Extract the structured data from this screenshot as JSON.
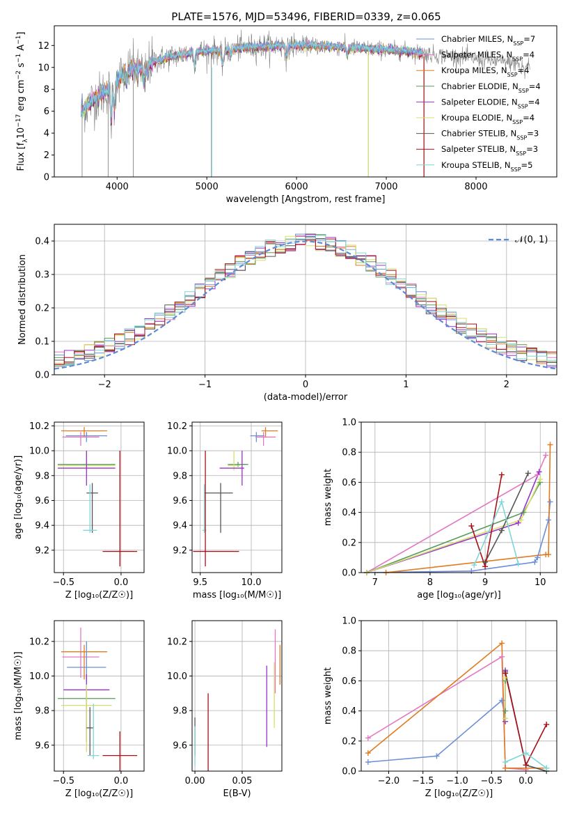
{
  "title": "PLATE=1576, MJD=53496, FIBERID=0339, z=0.065",
  "colors": {
    "Chabrier MILES": "#6a8ed8",
    "Salpeter MILES": "#e377c2",
    "Kroupa MILES": "#e07b1e",
    "Chabrier ELODIE": "#5a9a5a",
    "Salpeter ELODIE": "#9932cc",
    "Kroupa ELODIE": "#d4e06a",
    "Chabrier STELIB": "#555555",
    "Salpeter STELIB": "#a50f15",
    "Kroupa STELIB": "#7fd6d6",
    "data": "#808080"
  },
  "chart_data": [
    {
      "id": "spectrum",
      "type": "line",
      "xlabel": "wavelength [Angstrom, rest frame]",
      "ylabel_parts": [
        "Flux [f",
        "λ",
        "10",
        "−17",
        " erg cm",
        "−2",
        " s",
        "−1",
        " A",
        "−1",
        "]"
      ],
      "xlim": [
        3300,
        8900
      ],
      "ylim": [
        0,
        13.8
      ],
      "xticks": [
        4000,
        5000,
        6000,
        7000,
        8000
      ],
      "yticks": [
        0,
        2,
        4,
        6,
        8,
        10,
        12
      ],
      "grid": false,
      "legend_position": "right",
      "legend": [
        {
          "model": "Chabrier MILES",
          "n": "7"
        },
        {
          "model": "Salpeter MILES",
          "n": "4"
        },
        {
          "model": "Kroupa MILES",
          "n": "4"
        },
        {
          "model": "Chabrier ELODIE",
          "n": "4"
        },
        {
          "model": "Salpeter ELODIE",
          "n": "4"
        },
        {
          "model": "Kroupa ELODIE",
          "n": "4"
        },
        {
          "model": "Chabrier STELIB",
          "n": "3"
        },
        {
          "model": "Salpeter STELIB",
          "n": "3"
        },
        {
          "model": "Kroupa STELIB",
          "n": "5"
        }
      ],
      "continuum": {
        "x": [
          3600,
          3700,
          3800,
          3900,
          4000,
          4100,
          4200,
          4300,
          4400,
          4500,
          4600,
          4700,
          4800,
          4900,
          5000,
          5200,
          5400,
          5600,
          5800,
          6000,
          6200,
          6400,
          6600,
          6800,
          7000,
          7200,
          7400,
          7600,
          7800,
          8000,
          8200,
          8400,
          8600
        ],
        "y": [
          6.0,
          6.8,
          7.4,
          8.0,
          8.9,
          9.6,
          10.0,
          10.3,
          10.5,
          10.8,
          11.0,
          11.1,
          11.3,
          11.4,
          11.5,
          11.6,
          11.8,
          11.9,
          12.0,
          12.0,
          12.0,
          11.9,
          11.8,
          11.7,
          11.6,
          11.5,
          11.3,
          11.1,
          11.0,
          10.8,
          10.6,
          10.4,
          10.2
        ]
      },
      "x_range_data": [
        3600,
        8600
      ],
      "x_range_models": [
        3600,
        7400
      ]
    },
    {
      "id": "residuals",
      "type": "histogram",
      "xlabel": "(data-model)/error",
      "ylabel": "Normed distribution",
      "xlim": [
        -2.5,
        2.5
      ],
      "ylim": [
        0,
        0.45
      ],
      "xticks": [
        -2,
        -1,
        0,
        1,
        2
      ],
      "yticks": [
        0.0,
        0.1,
        0.2,
        0.3,
        0.4
      ],
      "grid": true,
      "legend_position": "top-right",
      "legend": [
        "𝒩(0, 1)"
      ],
      "bins": 50,
      "reference": "gaussian mu=0 sigma=1"
    },
    {
      "id": "age_vs_Z",
      "type": "errorbar",
      "xlabel": "Z [log₁₀(Z/Z☉)]",
      "ylabel": "age  [log₁₀(age/yr)]",
      "xlim": [
        -0.58,
        0.2
      ],
      "ylim": [
        9.02,
        10.23
      ],
      "xticks": [
        -0.5,
        0.0
      ],
      "yticks": [
        9.2,
        9.4,
        9.6,
        9.8,
        10.0,
        10.2
      ],
      "grid": true,
      "points": [
        {
          "model": "Kroupa MILES",
          "x": -0.32,
          "y": 10.16,
          "xerr": [
            0.2,
            0.2
          ],
          "yerr": [
            0.05,
            0.03
          ]
        },
        {
          "model": "Chabrier MILES",
          "x": -0.3,
          "y": 10.12,
          "xerr": [
            0.18,
            0.18
          ],
          "yerr": [
            0.05,
            0.03
          ]
        },
        {
          "model": "Salpeter MILES",
          "x": -0.35,
          "y": 10.11,
          "xerr": [
            0.16,
            0.16
          ],
          "yerr": [
            0.07,
            0.04
          ]
        },
        {
          "model": "Chabrier ELODIE",
          "x": -0.3,
          "y": 9.89,
          "xerr": [
            0.25,
            0.25
          ],
          "yerr": [
            0.02,
            0.02
          ]
        },
        {
          "model": "Kroupa ELODIE",
          "x": -0.3,
          "y": 9.88,
          "xerr": [
            0.25,
            0.25
          ],
          "yerr": [
            0.04,
            0.12
          ]
        },
        {
          "model": "Salpeter ELODIE",
          "x": -0.3,
          "y": 9.86,
          "xerr": [
            0.25,
            0.25
          ],
          "yerr": [
            0.14,
            0.14
          ]
        },
        {
          "model": "Chabrier STELIB",
          "x": -0.25,
          "y": 9.66,
          "xerr": [
            0.05,
            0.05
          ],
          "yerr": [
            0.32,
            0.08
          ]
        },
        {
          "model": "Kroupa STELIB",
          "x": -0.27,
          "y": 9.36,
          "xerr": [
            0.06,
            0.06
          ],
          "yerr": [
            0.02,
            0.37
          ]
        },
        {
          "model": "Salpeter STELIB",
          "x": -0.01,
          "y": 9.19,
          "xerr": [
            0.15,
            0.15
          ],
          "yerr": [
            0.12,
            0.81
          ]
        }
      ]
    },
    {
      "id": "age_vs_mass",
      "type": "errorbar",
      "xlabel": "mass [log₁₀(M/M☉)]",
      "ylabel": "",
      "xlim": [
        9.42,
        10.3
      ],
      "ylim": [
        9.02,
        10.23
      ],
      "xticks": [
        9.5,
        10.0
      ],
      "yticks": [
        9.2,
        9.4,
        9.6,
        9.8,
        10.0,
        10.2
      ],
      "grid": true,
      "points": [
        {
          "model": "Kroupa MILES",
          "x": 10.14,
          "y": 10.16,
          "xerr": [
            0.04,
            0.12
          ],
          "yerr": [
            0.05,
            0.03
          ]
        },
        {
          "model": "Chabrier MILES",
          "x": 10.05,
          "y": 10.12,
          "xerr": [
            0.06,
            0.08
          ],
          "yerr": [
            0.05,
            0.03
          ]
        },
        {
          "model": "Salpeter MILES",
          "x": 10.12,
          "y": 10.11,
          "xerr": [
            0.08,
            0.12
          ],
          "yerr": [
            0.07,
            0.04
          ]
        },
        {
          "model": "Chabrier ELODIE",
          "x": 9.87,
          "y": 9.89,
          "xerr": [
            0.1,
            0.1
          ],
          "yerr": [
            0.02,
            0.02
          ]
        },
        {
          "model": "Kroupa ELODIE",
          "x": 9.83,
          "y": 9.88,
          "xerr": [
            0.06,
            0.06
          ],
          "yerr": [
            0.04,
            0.12
          ]
        },
        {
          "model": "Salpeter ELODIE",
          "x": 9.91,
          "y": 9.86,
          "xerr": [
            0.22,
            0.02
          ],
          "yerr": [
            0.14,
            0.14
          ]
        },
        {
          "model": "Chabrier STELIB",
          "x": 9.7,
          "y": 9.66,
          "xerr": [
            0.16,
            0.12
          ],
          "yerr": [
            0.32,
            0.08
          ]
        },
        {
          "model": "Kroupa STELIB",
          "x": 9.54,
          "y": 9.36,
          "xerr": [
            0.02,
            0.02
          ],
          "yerr": [
            0.02,
            0.37
          ]
        },
        {
          "model": "Salpeter STELIB",
          "x": 9.55,
          "y": 9.19,
          "xerr": [
            0.12,
            0.33
          ],
          "yerr": [
            0.12,
            0.81
          ]
        }
      ]
    },
    {
      "id": "mass_weight_vs_age",
      "type": "line",
      "xlabel": "age  [log₁₀(age/yr)]",
      "ylabel": "mass weight",
      "xlim": [
        6.75,
        10.3
      ],
      "ylim": [
        0,
        1
      ],
      "xticks": [
        7,
        8,
        9,
        10
      ],
      "yticks": [
        0.0,
        0.2,
        0.4,
        0.6,
        0.8,
        1.0
      ],
      "grid": true,
      "series": [
        {
          "model": "Chabrier MILES",
          "x": [
            6.85,
            8.75,
            9.9,
            9.95,
            10.15,
            10.18
          ],
          "y": [
            0.0,
            0.01,
            0.07,
            0.1,
            0.35,
            0.47
          ]
        },
        {
          "model": "Salpeter MILES",
          "x": [
            6.85,
            9.95,
            10.1
          ],
          "y": [
            0.0,
            0.65,
            0.78
          ]
        },
        {
          "model": "Kroupa MILES",
          "x": [
            7.2,
            10.1,
            10.15,
            10.18
          ],
          "y": [
            0.0,
            0.12,
            0.12,
            0.85
          ]
        },
        {
          "model": "Chabrier ELODIE",
          "x": [
            6.85,
            9.7,
            10.0
          ],
          "y": [
            0.0,
            0.4,
            0.6
          ]
        },
        {
          "model": "Salpeter ELODIE",
          "x": [
            6.85,
            9.6,
            9.98
          ],
          "y": [
            0.0,
            0.33,
            0.67
          ]
        },
        {
          "model": "Kroupa ELODIE",
          "x": [
            6.85,
            9.65,
            10.0
          ],
          "y": [
            0.0,
            0.35,
            0.62
          ]
        },
        {
          "model": "Chabrier STELIB",
          "x": [
            9.0,
            9.3,
            9.78
          ],
          "y": [
            0.07,
            0.28,
            0.66
          ]
        },
        {
          "model": "Salpeter STELIB",
          "x": [
            8.75,
            9.0,
            9.3
          ],
          "y": [
            0.31,
            0.04,
            0.65
          ]
        },
        {
          "model": "Kroupa STELIB",
          "x": [
            8.8,
            9.3,
            9.6
          ],
          "y": [
            0.05,
            0.47,
            0.06
          ]
        }
      ]
    },
    {
      "id": "mass_vs_Z",
      "type": "errorbar",
      "xlabel": "Z [log₁₀(Z/Z☉)]",
      "ylabel": "mass [log₁₀(M/M☉)]",
      "xlim": [
        -0.58,
        0.2
      ],
      "ylim": [
        9.45,
        10.32
      ],
      "xticks": [
        -0.5,
        0.0
      ],
      "yticks": [
        9.6,
        9.8,
        10.0,
        10.2
      ],
      "grid": true,
      "points": [
        {
          "model": "Salpeter MILES",
          "x": -0.35,
          "y": 10.11,
          "xerr": [
            0.16,
            0.16
          ],
          "yerr": [
            0.12,
            0.17
          ]
        },
        {
          "model": "Kroupa MILES",
          "x": -0.32,
          "y": 10.14,
          "xerr": [
            0.2,
            0.2
          ],
          "yerr": [
            0.16,
            0.04
          ]
        },
        {
          "model": "Chabrier MILES",
          "x": -0.3,
          "y": 10.05,
          "xerr": [
            0.17,
            0.17
          ],
          "yerr": [
            0.08,
            0.15
          ]
        },
        {
          "model": "Salpeter ELODIE",
          "x": -0.3,
          "y": 9.92,
          "xerr": [
            0.2,
            0.2
          ],
          "yerr": [
            0.3,
            0.09
          ]
        },
        {
          "model": "Chabrier ELODIE",
          "x": -0.3,
          "y": 9.87,
          "xerr": [
            0.25,
            0.25
          ],
          "yerr": [
            0.02,
            0.02
          ]
        },
        {
          "model": "Kroupa ELODIE",
          "x": -0.3,
          "y": 9.83,
          "xerr": [
            0.22,
            0.22
          ],
          "yerr": [
            0.27,
            0.12
          ]
        },
        {
          "model": "Chabrier STELIB",
          "x": -0.27,
          "y": 9.7,
          "xerr": [
            0.03,
            0.03
          ],
          "yerr": [
            0.16,
            0.12
          ]
        },
        {
          "model": "Kroupa STELIB",
          "x": -0.24,
          "y": 9.54,
          "xerr": [
            0.05,
            0.05
          ],
          "yerr": [
            0.02,
            0.3
          ]
        },
        {
          "model": "Salpeter STELIB",
          "x": -0.01,
          "y": 9.54,
          "xerr": [
            0.15,
            0.15
          ],
          "yerr": [
            0.12,
            0.14
          ]
        }
      ]
    },
    {
      "id": "mass_vs_ebv",
      "type": "errorbar",
      "xlabel": "E(B-V)",
      "ylabel": "",
      "xlim": [
        -0.003,
        0.092
      ],
      "ylim": [
        9.45,
        10.32
      ],
      "xticks": [
        0.0,
        0.05
      ],
      "yticks": [
        9.6,
        9.8,
        10.0,
        10.2
      ],
      "grid": true,
      "points": [
        {
          "model": "Chabrier STELIB",
          "x": 0.0,
          "y": 9.7,
          "xerr": [
            0,
            0
          ],
          "yerr": [
            0.16,
            0.06
          ]
        },
        {
          "model": "Kroupa STELIB",
          "x": 0.0,
          "y": 9.6,
          "xerr": [
            0,
            0
          ],
          "yerr": [
            0.12,
            0.11
          ]
        },
        {
          "model": "Salpeter STELIB",
          "x": 0.014,
          "y": 9.7,
          "xerr": [
            0,
            0
          ],
          "yerr": [
            0.26,
            0.2
          ]
        },
        {
          "model": "Salpeter ELODIE",
          "x": 0.076,
          "y": 9.82,
          "xerr": [
            0,
            0
          ],
          "yerr": [
            0.23,
            0.24
          ]
        },
        {
          "model": "Kroupa ELODIE",
          "x": 0.084,
          "y": 9.9,
          "xerr": [
            0,
            0
          ],
          "yerr": [
            0.2,
            0.18
          ]
        },
        {
          "model": "Salpeter MILES",
          "x": 0.085,
          "y": 10.1,
          "xerr": [
            0,
            0
          ],
          "yerr": [
            0.2,
            0.17
          ]
        },
        {
          "model": "Kroupa MILES",
          "x": 0.09,
          "y": 10.07,
          "xerr": [
            0,
            0
          ],
          "yerr": [
            0.12,
            0.11
          ]
        }
      ]
    },
    {
      "id": "mass_weight_vs_Z",
      "type": "line",
      "xlabel": "Z [log₁₀(Z/Z☉)]",
      "ylabel": "mass weight",
      "xlim": [
        -2.4,
        0.45
      ],
      "ylim": [
        0,
        1
      ],
      "xticks": [
        -2.0,
        -1.5,
        -1.0,
        -0.5,
        0.0
      ],
      "yticks": [
        0.0,
        0.2,
        0.4,
        0.6,
        0.8,
        1.0
      ],
      "grid": true,
      "series": [
        {
          "model": "Chabrier MILES",
          "x": [
            -2.3,
            -1.3,
            -0.35,
            -0.3,
            -0.3
          ],
          "y": [
            0.06,
            0.1,
            0.47,
            0.35,
            0.33
          ]
        },
        {
          "model": "Salpeter MILES",
          "x": [
            -2.3,
            -0.35,
            -0.3,
            0.0
          ],
          "y": [
            0.22,
            0.76,
            0.02,
            0.01
          ]
        },
        {
          "model": "Kroupa MILES",
          "x": [
            -2.3,
            -0.35,
            -0.3,
            0.0,
            0.3
          ],
          "y": [
            0.12,
            0.85,
            0.02,
            0.02,
            0.02
          ]
        },
        {
          "model": "Chabrier ELODIE",
          "x": [
            -0.3,
            -0.3
          ],
          "y": [
            0.6,
            0.4
          ]
        },
        {
          "model": "Salpeter ELODIE",
          "x": [
            -0.3,
            -0.3
          ],
          "y": [
            0.67,
            0.33
          ]
        },
        {
          "model": "Kroupa ELODIE",
          "x": [
            -0.3,
            -0.3
          ],
          "y": [
            0.62,
            0.35
          ]
        },
        {
          "model": "Chabrier STELIB",
          "x": [
            -0.3,
            0.0,
            0.3
          ],
          "y": [
            0.66,
            0.04,
            0.0
          ]
        },
        {
          "model": "Salpeter STELIB",
          "x": [
            -0.3,
            0.0,
            0.3
          ],
          "y": [
            0.65,
            0.04,
            0.31
          ]
        },
        {
          "model": "Kroupa STELIB",
          "x": [
            -0.3,
            0.0,
            0.3
          ],
          "y": [
            0.06,
            0.12,
            0.02
          ]
        }
      ]
    }
  ]
}
